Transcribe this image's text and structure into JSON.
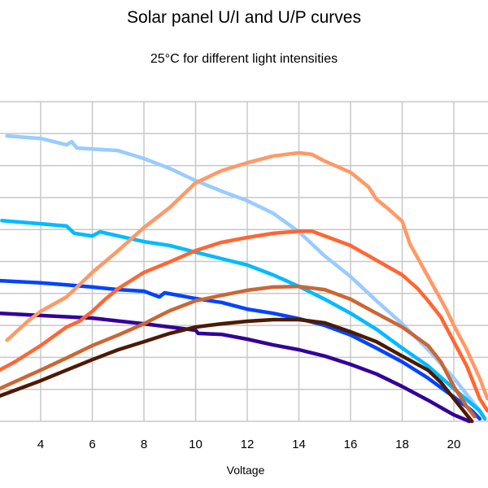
{
  "chart_data": {
    "type": "line",
    "title": "Solar panel U/I and U/P curves",
    "subtitle": "25°C for different light intensities",
    "xlabel": "Voltage",
    "ylabel": "",
    "xlim": [
      2.4,
      21.3
    ],
    "ylim": [
      0,
      10
    ],
    "xticks": [
      4,
      6,
      8,
      10,
      12,
      14,
      16,
      18,
      20
    ],
    "grid": true,
    "legend": "none",
    "series": [
      {
        "color": "#99ccff",
        "points": [
          [
            2.7,
            8.93
          ],
          [
            4,
            8.85
          ],
          [
            5,
            8.65
          ],
          [
            5.2,
            8.75
          ],
          [
            5.4,
            8.55
          ],
          [
            6,
            8.52
          ],
          [
            7,
            8.47
          ],
          [
            8,
            8.22
          ],
          [
            9,
            7.91
          ],
          [
            10,
            7.53
          ],
          [
            11,
            7.2
          ],
          [
            12,
            6.9
          ],
          [
            13,
            6.51
          ],
          [
            14,
            5.93
          ],
          [
            15,
            5.17
          ],
          [
            16,
            4.53
          ],
          [
            17,
            3.77
          ],
          [
            18,
            3.05
          ],
          [
            19,
            2.24
          ],
          [
            20,
            1.35
          ],
          [
            21,
            0.33
          ],
          [
            21.2,
            0.08
          ]
        ]
      },
      {
        "color": "#00bbff",
        "points": [
          [
            2.5,
            6.28
          ],
          [
            4,
            6.18
          ],
          [
            5,
            6.11
          ],
          [
            5.3,
            5.88
          ],
          [
            6,
            5.8
          ],
          [
            6.3,
            5.93
          ],
          [
            7,
            5.8
          ],
          [
            8,
            5.62
          ],
          [
            9,
            5.5
          ],
          [
            10,
            5.29
          ],
          [
            11,
            5.09
          ],
          [
            12,
            4.89
          ],
          [
            13,
            4.58
          ],
          [
            14,
            4.22
          ],
          [
            15,
            3.82
          ],
          [
            16,
            3.38
          ],
          [
            17,
            2.88
          ],
          [
            18,
            2.29
          ],
          [
            19,
            1.73
          ],
          [
            20,
            1.02
          ],
          [
            21,
            0.33
          ],
          [
            21.2,
            0.08
          ]
        ]
      },
      {
        "color": "#0044ff",
        "points": [
          [
            2.4,
            4.4
          ],
          [
            4,
            4.33
          ],
          [
            5,
            4.27
          ],
          [
            6,
            4.2
          ],
          [
            7,
            4.12
          ],
          [
            8,
            4.07
          ],
          [
            8.6,
            3.89
          ],
          [
            8.8,
            4.02
          ],
          [
            10,
            3.84
          ],
          [
            11,
            3.72
          ],
          [
            12,
            3.51
          ],
          [
            13,
            3.38
          ],
          [
            14,
            3.21
          ],
          [
            15,
            3.0
          ],
          [
            16,
            2.7
          ],
          [
            17,
            2.29
          ],
          [
            18,
            1.86
          ],
          [
            19,
            1.35
          ],
          [
            20,
            0.76
          ],
          [
            20.7,
            0.33
          ],
          [
            21,
            0.08
          ]
        ]
      },
      {
        "color": "#330099",
        "points": [
          [
            2.4,
            3.38
          ],
          [
            4,
            3.31
          ],
          [
            6,
            3.23
          ],
          [
            8,
            3.05
          ],
          [
            10,
            2.85
          ],
          [
            10.1,
            2.75
          ],
          [
            11,
            2.72
          ],
          [
            12,
            2.57
          ],
          [
            13,
            2.39
          ],
          [
            14,
            2.24
          ],
          [
            15,
            2.04
          ],
          [
            16,
            1.78
          ],
          [
            17,
            1.48
          ],
          [
            18,
            1.09
          ],
          [
            19,
            0.66
          ],
          [
            20,
            0.2
          ],
          [
            20.6,
            0.0
          ]
        ]
      },
      {
        "color": "#ff9966",
        "points": [
          [
            2.7,
            2.54
          ],
          [
            3.5,
            3.13
          ],
          [
            4,
            3.44
          ],
          [
            5,
            3.89
          ],
          [
            5.5,
            4.27
          ],
          [
            6,
            4.66
          ],
          [
            7,
            5.34
          ],
          [
            8,
            6.06
          ],
          [
            9,
            6.69
          ],
          [
            10,
            7.46
          ],
          [
            11,
            7.84
          ],
          [
            12,
            8.09
          ],
          [
            13,
            8.3
          ],
          [
            14,
            8.4
          ],
          [
            14.5,
            8.35
          ],
          [
            15,
            8.14
          ],
          [
            16,
            7.79
          ],
          [
            16.7,
            7.33
          ],
          [
            17,
            6.95
          ],
          [
            17.5,
            6.62
          ],
          [
            18,
            6.26
          ],
          [
            18.3,
            5.55
          ],
          [
            19,
            4.53
          ],
          [
            19.7,
            3.51
          ],
          [
            20,
            3.0
          ],
          [
            20.5,
            2.24
          ],
          [
            21,
            1.35
          ],
          [
            21.3,
            0.71
          ]
        ]
      },
      {
        "color": "#ff6633",
        "points": [
          [
            2.4,
            1.6
          ],
          [
            3,
            1.86
          ],
          [
            4,
            2.37
          ],
          [
            5,
            2.95
          ],
          [
            5.5,
            3.13
          ],
          [
            6,
            3.44
          ],
          [
            6.5,
            3.82
          ],
          [
            7,
            4.15
          ],
          [
            8,
            4.66
          ],
          [
            9,
            4.99
          ],
          [
            10,
            5.34
          ],
          [
            11,
            5.6
          ],
          [
            12,
            5.75
          ],
          [
            13,
            5.88
          ],
          [
            14,
            5.95
          ],
          [
            14.5,
            5.95
          ],
          [
            15,
            5.8
          ],
          [
            16,
            5.5
          ],
          [
            17,
            5.04
          ],
          [
            18,
            4.58
          ],
          [
            18.6,
            4.15
          ],
          [
            19,
            3.77
          ],
          [
            19.5,
            3.26
          ],
          [
            20,
            2.49
          ],
          [
            20.5,
            1.73
          ],
          [
            21,
            0.71
          ],
          [
            21.3,
            0.33
          ]
        ]
      },
      {
        "color": "#cc6633",
        "points": [
          [
            2.4,
            1.02
          ],
          [
            4,
            1.6
          ],
          [
            5,
            1.98
          ],
          [
            6,
            2.37
          ],
          [
            7,
            2.7
          ],
          [
            8,
            3.05
          ],
          [
            8.5,
            3.26
          ],
          [
            9,
            3.46
          ],
          [
            10,
            3.77
          ],
          [
            11,
            3.94
          ],
          [
            12,
            4.1
          ],
          [
            13,
            4.2
          ],
          [
            14,
            4.22
          ],
          [
            15,
            4.12
          ],
          [
            16,
            3.82
          ],
          [
            17,
            3.38
          ],
          [
            18,
            2.95
          ],
          [
            19,
            2.37
          ],
          [
            19.5,
            1.86
          ],
          [
            20,
            1.09
          ],
          [
            20.5,
            0.46
          ],
          [
            20.8,
            0.15
          ]
        ]
      },
      {
        "color": "#4d1a00",
        "points": [
          [
            2.4,
            0.79
          ],
          [
            4,
            1.27
          ],
          [
            5,
            1.6
          ],
          [
            6,
            1.93
          ],
          [
            7,
            2.24
          ],
          [
            8,
            2.49
          ],
          [
            9,
            2.75
          ],
          [
            10,
            2.95
          ],
          [
            11,
            3.05
          ],
          [
            12,
            3.13
          ],
          [
            13,
            3.18
          ],
          [
            14,
            3.18
          ],
          [
            15,
            3.08
          ],
          [
            16,
            2.8
          ],
          [
            17,
            2.49
          ],
          [
            18,
            2.04
          ],
          [
            19,
            1.6
          ],
          [
            19.5,
            1.22
          ],
          [
            20,
            0.71
          ],
          [
            20.5,
            0.2
          ],
          [
            20.7,
            0.0
          ]
        ]
      }
    ]
  }
}
